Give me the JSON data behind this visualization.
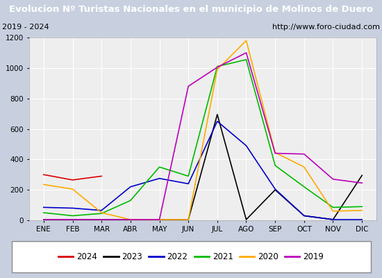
{
  "title": "Evolucion Nº Turistas Nacionales en el municipio de Molinos de Duero",
  "subtitle_left": "2019 - 2024",
  "subtitle_right": "http://www.foro-ciudad.com",
  "months": [
    "ENE",
    "FEB",
    "MAR",
    "ABR",
    "MAY",
    "JUN",
    "JUL",
    "AGO",
    "SEP",
    "OCT",
    "NOV",
    "DIC"
  ],
  "ylim": [
    0,
    1200
  ],
  "yticks": [
    0,
    200,
    400,
    600,
    800,
    1000,
    1200
  ],
  "series": {
    "2024": {
      "color": "#dd0000",
      "data": [
        300,
        265,
        290,
        null,
        null,
        null,
        null,
        null,
        null,
        null,
        null,
        null
      ]
    },
    "2023": {
      "color": "#000000",
      "data": [
        5,
        5,
        5,
        5,
        5,
        5,
        695,
        5,
        200,
        30,
        5,
        295
      ]
    },
    "2022": {
      "color": "#0000cc",
      "data": [
        85,
        80,
        65,
        220,
        275,
        240,
        650,
        490,
        205,
        30,
        5,
        5
      ]
    },
    "2021": {
      "color": "#00bb00",
      "data": [
        50,
        30,
        45,
        130,
        350,
        290,
        1010,
        1055,
        360,
        220,
        85,
        90
      ]
    },
    "2020": {
      "color": "#ffaa00",
      "data": [
        235,
        205,
        50,
        5,
        5,
        5,
        990,
        1180,
        445,
        350,
        60,
        65
      ]
    },
    "2019": {
      "color": "#bb00bb",
      "data": [
        5,
        5,
        5,
        5,
        5,
        880,
        1005,
        1100,
        440,
        435,
        270,
        245
      ]
    }
  },
  "title_bg_color": "#4a6fa5",
  "title_text_color": "#ffffff",
  "plot_bg_color": "#eeeeee",
  "grid_color": "#ffffff",
  "outer_bg_color": "#c8d0e0",
  "legend_order": [
    "2024",
    "2023",
    "2022",
    "2021",
    "2020",
    "2019"
  ],
  "title_fontsize": 9.5,
  "subtitle_fontsize": 8,
  "tick_fontsize": 7.5
}
